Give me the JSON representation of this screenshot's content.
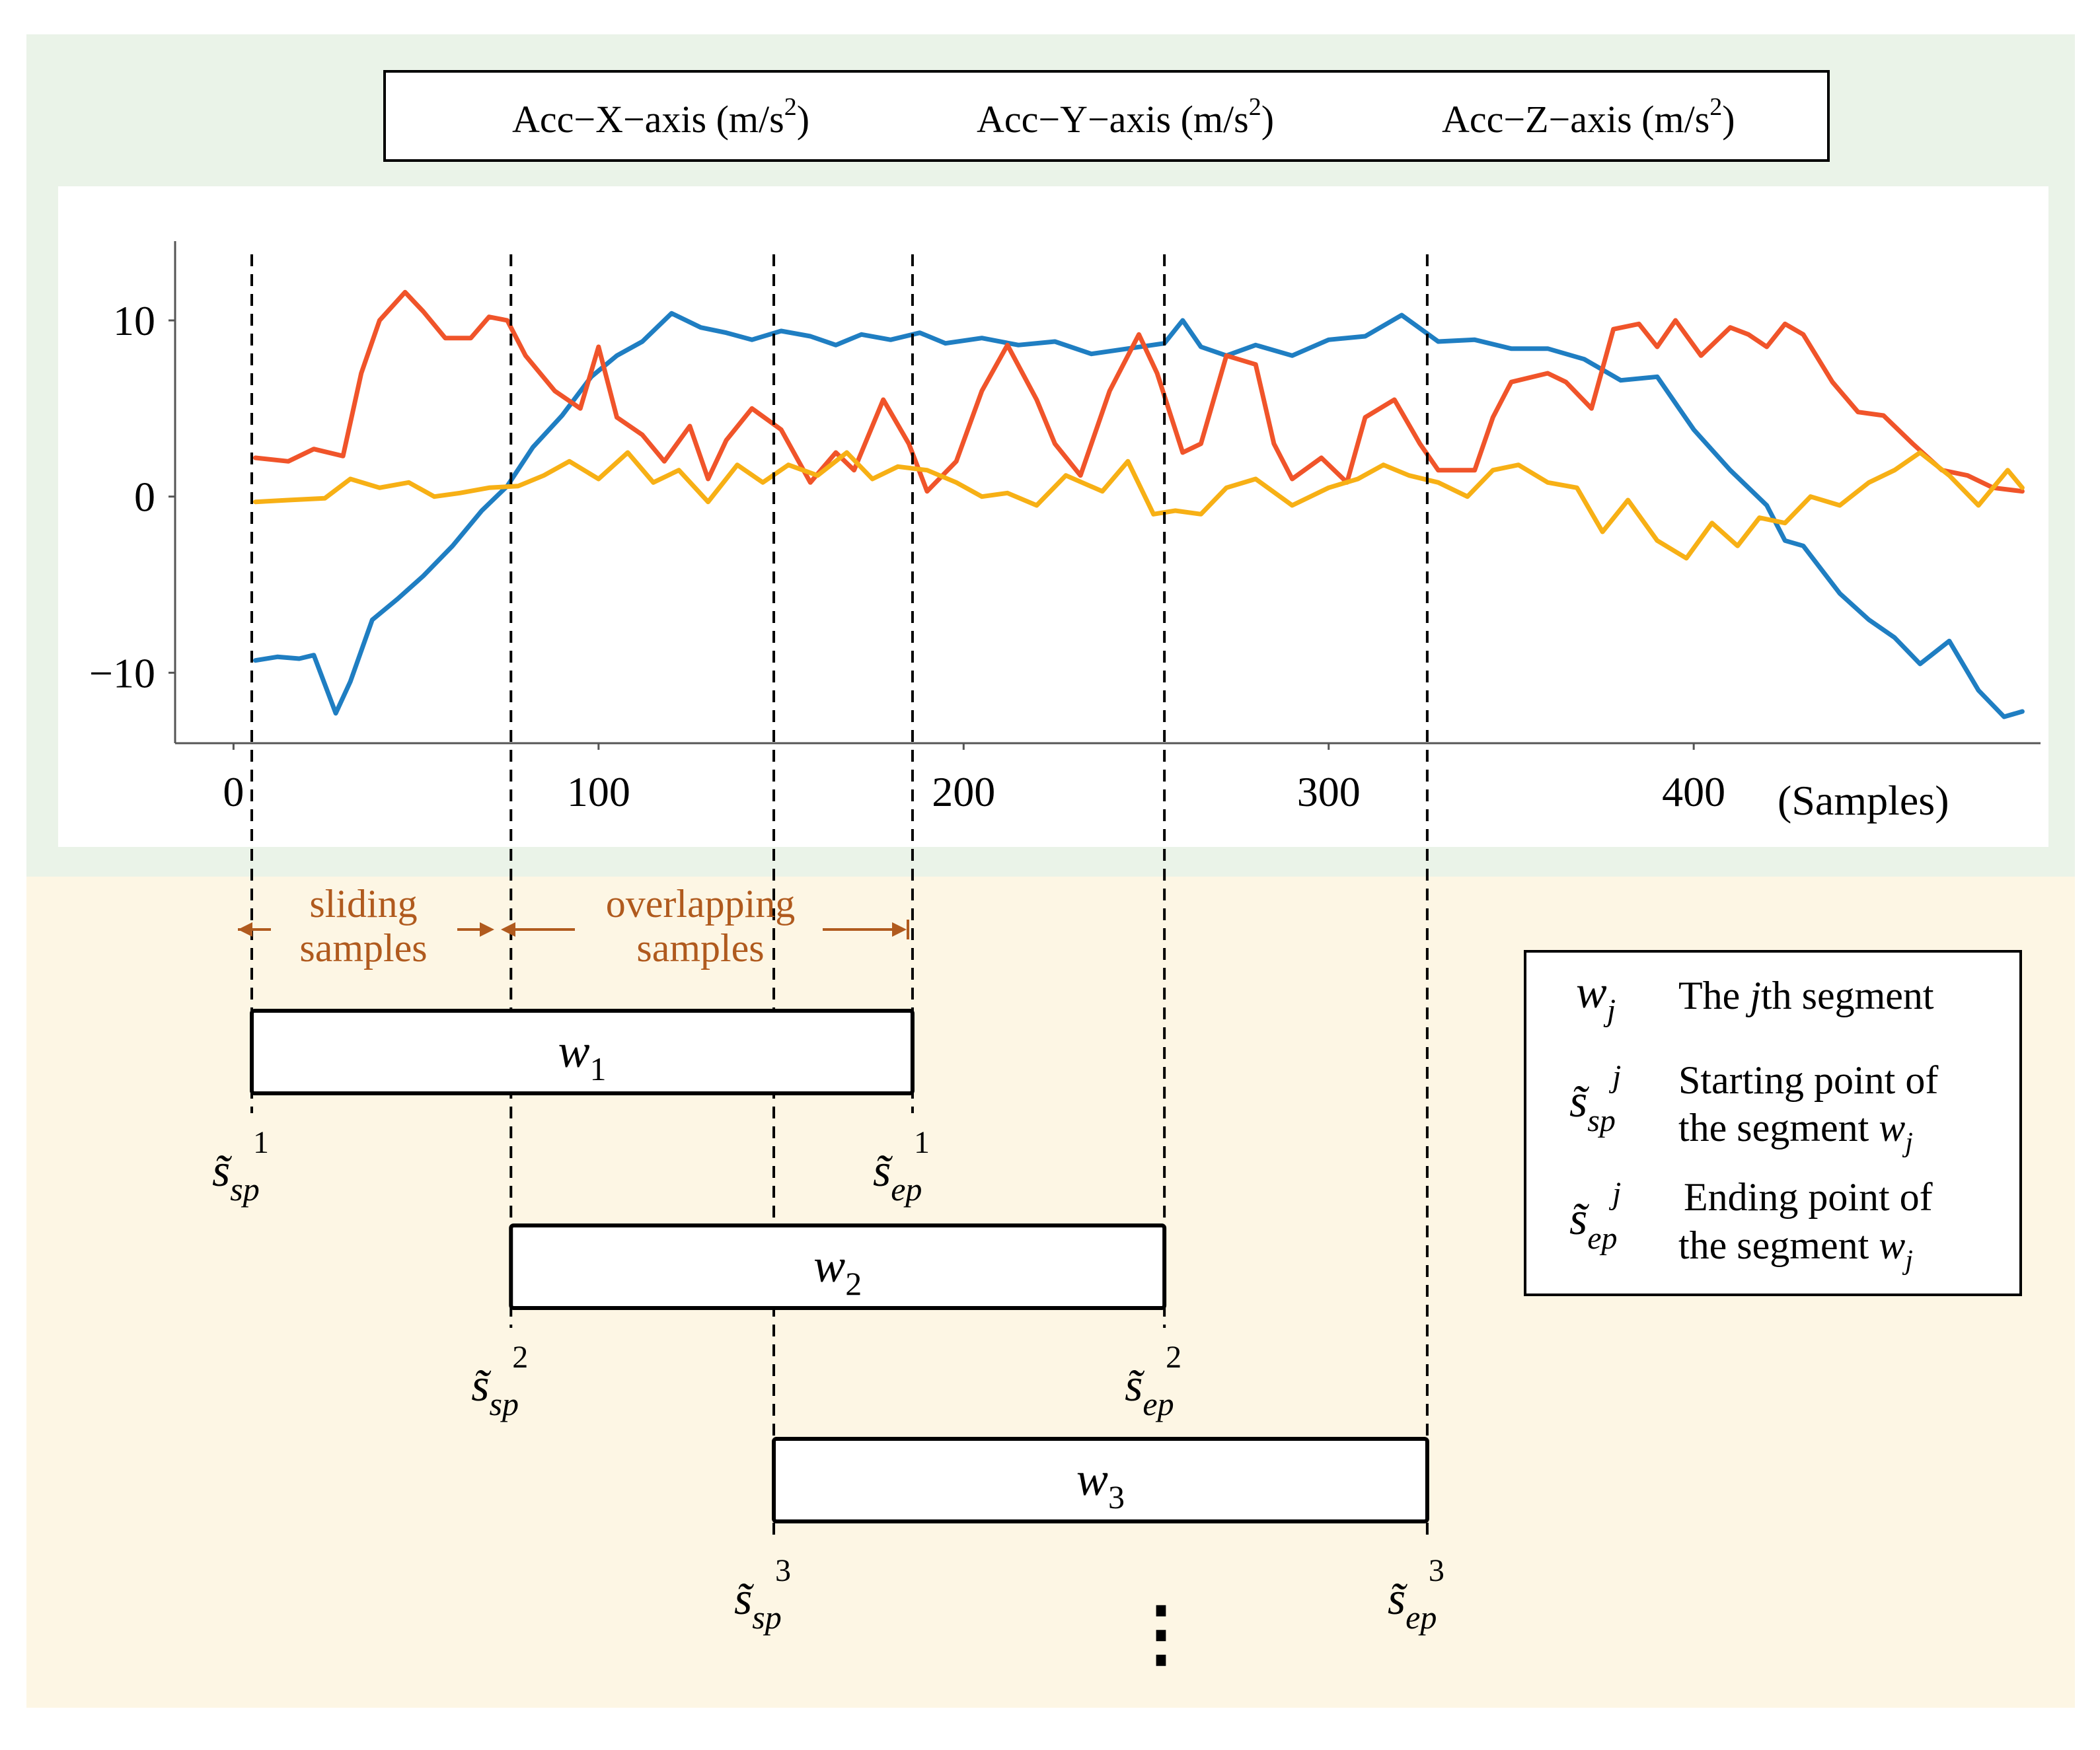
{
  "legend": {
    "items": [
      {
        "label": "Acc−X−axis (m/s",
        "sup": "2",
        "close": ")",
        "color": "#1f7ec2"
      },
      {
        "label": "Acc−Y−axis (m/s",
        "sup": "2",
        "close": ")",
        "color": "#f0542a"
      },
      {
        "label": "Acc−Z−axis (m/s",
        "sup": "2",
        "close": ")",
        "color": "#f7b015"
      }
    ]
  },
  "chart_data": {
    "type": "line",
    "x_axis": {
      "label": "(Samples)",
      "range": [
        -16,
        495
      ],
      "ticks": [
        0,
        100,
        200,
        300,
        400
      ]
    },
    "y_axis": {
      "range": [
        -14,
        14.5
      ],
      "ticks": [
        10,
        0,
        -10
      ],
      "tick_labels": [
        "10",
        "0",
        "−10"
      ]
    },
    "series": [
      {
        "name": "Acc−X−axis",
        "color": "#1f7ec2",
        "x": [
          6,
          12,
          18,
          22,
          28,
          32,
          38,
          45,
          52,
          60,
          68,
          75,
          82,
          90,
          98,
          105,
          112,
          120,
          128,
          135,
          142,
          150,
          158,
          165,
          172,
          180,
          188,
          195,
          205,
          215,
          225,
          235,
          245,
          255,
          260,
          265,
          272,
          280,
          290,
          300,
          310,
          320,
          330,
          340,
          350,
          360,
          370,
          380,
          390,
          400,
          410,
          420,
          425,
          430,
          440,
          448,
          455,
          462,
          470,
          478,
          485,
          490
        ],
        "y": [
          -9.3,
          -9.1,
          -9.2,
          -9.0,
          -12.3,
          -10.5,
          -7.0,
          -5.8,
          -4.5,
          -2.8,
          -0.8,
          0.6,
          2.8,
          4.6,
          6.8,
          8.0,
          8.8,
          10.4,
          9.6,
          9.3,
          8.9,
          9.4,
          9.1,
          8.6,
          9.2,
          8.9,
          9.3,
          8.7,
          9.0,
          8.6,
          8.8,
          8.1,
          8.4,
          8.7,
          10.0,
          8.5,
          8.0,
          8.6,
          8.0,
          8.9,
          9.1,
          10.3,
          8.8,
          8.9,
          8.4,
          8.4,
          7.8,
          6.6,
          6.8,
          3.8,
          1.5,
          -0.5,
          -2.5,
          -2.8,
          -5.5,
          -7.0,
          -8.0,
          -9.5,
          -8.2,
          -11.0,
          -12.5,
          -12.2
        ]
      },
      {
        "name": "Acc−Y−axis",
        "color": "#f0542a",
        "x": [
          6,
          15,
          22,
          30,
          35,
          40,
          47,
          52,
          58,
          65,
          70,
          75,
          80,
          88,
          95,
          100,
          105,
          112,
          118,
          125,
          130,
          135,
          142,
          150,
          158,
          165,
          170,
          178,
          185,
          190,
          198,
          205,
          212,
          220,
          225,
          232,
          240,
          248,
          253,
          260,
          265,
          272,
          280,
          285,
          290,
          298,
          305,
          310,
          318,
          325,
          330,
          340,
          345,
          350,
          360,
          365,
          372,
          378,
          385,
          390,
          395,
          402,
          410,
          415,
          420,
          425,
          430,
          438,
          445,
          452,
          460,
          468,
          475,
          482,
          490
        ],
        "y": [
          2.2,
          2.0,
          2.7,
          2.3,
          7.0,
          10.0,
          11.6,
          10.5,
          9.0,
          9.0,
          10.2,
          10.0,
          8.0,
          6.0,
          5.0,
          8.5,
          4.5,
          3.5,
          2.0,
          4.0,
          1.0,
          3.2,
          5.0,
          3.8,
          0.8,
          2.5,
          1.5,
          5.5,
          3.0,
          0.3,
          2.0,
          6.0,
          8.6,
          5.5,
          3.0,
          1.2,
          6.0,
          9.2,
          7.0,
          2.5,
          3.0,
          8.0,
          7.5,
          3.0,
          1.0,
          2.2,
          0.8,
          4.5,
          5.5,
          3.0,
          1.5,
          1.5,
          4.5,
          6.5,
          7.0,
          6.5,
          5.0,
          9.5,
          9.8,
          8.5,
          10.0,
          8.0,
          9.6,
          9.2,
          8.5,
          9.8,
          9.2,
          6.5,
          4.8,
          4.6,
          3.0,
          1.5,
          1.2,
          0.5,
          0.3
        ]
      },
      {
        "name": "Acc−Z−axis",
        "color": "#f7b015",
        "x": [
          6,
          15,
          25,
          32,
          40,
          48,
          55,
          62,
          70,
          78,
          85,
          92,
          100,
          108,
          115,
          122,
          130,
          138,
          145,
          152,
          160,
          168,
          175,
          182,
          190,
          198,
          205,
          212,
          220,
          228,
          238,
          245,
          252,
          258,
          265,
          272,
          280,
          290,
          300,
          308,
          315,
          322,
          330,
          338,
          345,
          352,
          360,
          368,
          375,
          382,
          390,
          398,
          405,
          412,
          418,
          425,
          432,
          440,
          448,
          455,
          462,
          470,
          478,
          486,
          490
        ],
        "y": [
          -0.3,
          -0.2,
          -0.1,
          1.0,
          0.5,
          0.8,
          0.0,
          0.2,
          0.5,
          0.6,
          1.2,
          2.0,
          1.0,
          2.5,
          0.8,
          1.5,
          -0.3,
          1.8,
          0.8,
          1.8,
          1.2,
          2.5,
          1.0,
          1.7,
          1.5,
          0.8,
          0.0,
          0.2,
          -0.5,
          1.2,
          0.3,
          2.0,
          -1.0,
          -0.8,
          -1.0,
          0.5,
          1.0,
          -0.5,
          0.5,
          1.0,
          1.8,
          1.2,
          0.8,
          0.0,
          1.5,
          1.8,
          0.8,
          0.5,
          -2.0,
          -0.2,
          -2.5,
          -3.5,
          -1.5,
          -2.8,
          -1.2,
          -1.5,
          0.0,
          -0.5,
          0.8,
          1.5,
          2.5,
          1.2,
          -0.5,
          1.5,
          0.5
        ]
      }
    ]
  },
  "annotations": {
    "sliding": {
      "line1": "sliding",
      "line2": "samples"
    },
    "overlapping": {
      "line1": "overlapping",
      "line2": "samples"
    },
    "dots": "⋮"
  },
  "segments": [
    {
      "base": "w",
      "sub": "1",
      "start_sub": "sp",
      "start_sup": "1",
      "end_sub": "ep",
      "end_sup": "1",
      "start": 5,
      "end": 186
    },
    {
      "base": "w",
      "sub": "2",
      "start_sub": "sp",
      "start_sup": "2",
      "end_sub": "ep",
      "end_sup": "2",
      "start": 76,
      "end": 255
    },
    {
      "base": "w",
      "sub": "3",
      "start_sub": "sp",
      "start_sup": "3",
      "end_sub": "ep",
      "end_sup": "3",
      "start": 148,
      "end": 327
    }
  ],
  "segment_base_symbol": "s̃",
  "key": {
    "rows": [
      {
        "symbol": "w",
        "symbol_sub": "j",
        "line1": "The ",
        "line1_it": "j",
        "line1_end": "th segment",
        "line2": ""
      },
      {
        "symbol": "s̃",
        "symbol_sub": "sp",
        "symbol_sup": "j",
        "line1": "Starting point of",
        "line2": "the segment ",
        "line2_it": "w",
        "line2_sub": "j"
      },
      {
        "symbol": "s̃",
        "symbol_sub": "ep",
        "symbol_sup": "j",
        "line1": "Ending point of",
        "line2": "the segment ",
        "line2_it": "w",
        "line2_sub": "j"
      }
    ]
  },
  "colors": {
    "top_bg": "#eaf3e8",
    "bottom_bg": "#fdf6e4",
    "annotation": "#b05a1e"
  }
}
